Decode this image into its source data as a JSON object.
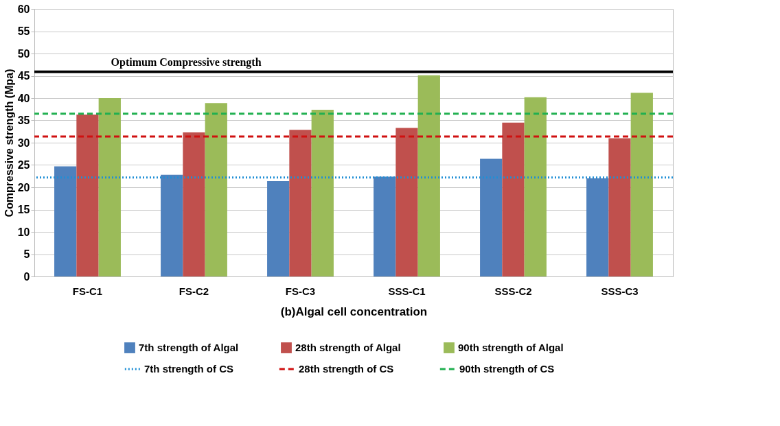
{
  "chart_data": {
    "type": "bar",
    "xlabel": "(b)Algal cell concentration",
    "ylabel": "Compressive strength (Mpa)",
    "categories": [
      "FS-C1",
      "FS-C2",
      "FS-C3",
      "SSS-C1",
      "SSS-C2",
      "SSS-C3"
    ],
    "series": [
      {
        "name": "7th strength of Algal",
        "color": "#4f81bd",
        "values": [
          24.7,
          22.8,
          21.4,
          22.4,
          26.4,
          22.0
        ]
      },
      {
        "name": "28th strength of Algal",
        "color": "#c0504d",
        "values": [
          36.3,
          32.3,
          32.9,
          33.3,
          34.5,
          31.0
        ]
      },
      {
        "name": "90th strength of Algal",
        "color": "#9bbb59",
        "values": [
          40.0,
          38.9,
          37.4,
          45.1,
          40.2,
          41.2
        ]
      }
    ],
    "ref_lines": [
      {
        "axis": "y",
        "value": 22.2,
        "label": "7th strength of CS",
        "color": "#1f8fd6",
        "line_style": "dotted"
      },
      {
        "axis": "y",
        "value": 31.4,
        "label": "28th strength of CS",
        "color": "#d01010",
        "line_style": "dashed"
      },
      {
        "axis": "y",
        "value": 36.5,
        "label": "90th strength of CS",
        "color": "#20b050",
        "line_style": "dashed"
      }
    ],
    "bands": [
      {
        "axis": "y",
        "from": 45.6,
        "to": 46.2,
        "label": "Optimum Compressive strength",
        "color": "#000000"
      }
    ],
    "ylim": [
      0,
      60
    ],
    "yticks": [
      0,
      5,
      10,
      15,
      20,
      25,
      30,
      35,
      40,
      45,
      50,
      55,
      60
    ],
    "grid": "y",
    "legend": "bottom"
  }
}
